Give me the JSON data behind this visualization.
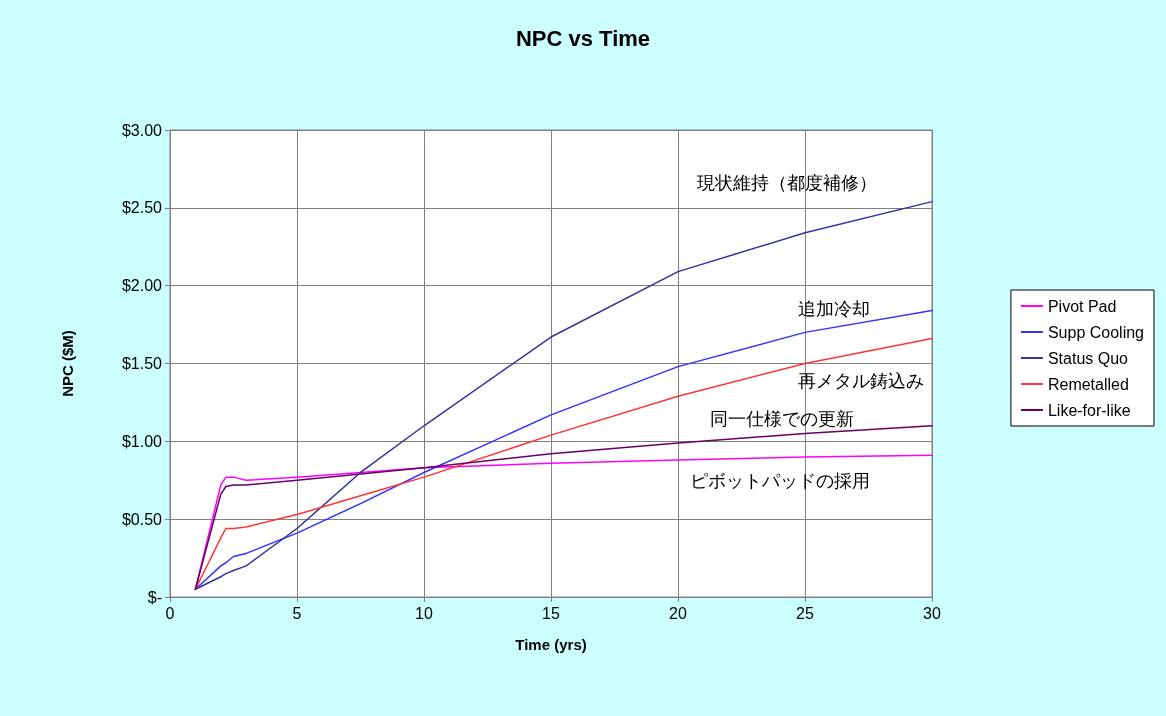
{
  "chart_data": {
    "type": "line",
    "title": "NPC vs Time",
    "xlabel": "Time (yrs)",
    "ylabel": "NPC ($M)",
    "xlim": [
      0,
      30
    ],
    "xticks": [
      0,
      5,
      10,
      15,
      20,
      25,
      30
    ],
    "ylim": [
      0,
      3
    ],
    "yticks": [
      {
        "value": 0,
        "label": "$-"
      },
      {
        "value": 0.5,
        "label": "$0.50"
      },
      {
        "value": 1,
        "label": "$1.00"
      },
      {
        "value": 1.5,
        "label": "$1.50"
      },
      {
        "value": 2,
        "label": "$2.00"
      },
      {
        "value": 2.5,
        "label": "$2.50"
      },
      {
        "value": 3,
        "label": "$3.00"
      }
    ],
    "grid": true,
    "legend": "right",
    "marker": "none",
    "line_style": "solid",
    "x": [
      1,
      2,
      2.2,
      2.5,
      3,
      5,
      7.5,
      10,
      15,
      20,
      25,
      30
    ],
    "series": [
      {
        "name": "Pivot Pad",
        "color": "#ff00ff",
        "values": [
          0.05,
          0.72,
          0.77,
          0.77,
          0.75,
          0.77,
          0.8,
          0.83,
          0.86,
          0.88,
          0.9,
          0.91
        ]
      },
      {
        "name": "Supp Cooling",
        "color": "#3333ff",
        "values": [
          0.05,
          0.2,
          0.22,
          0.26,
          0.28,
          0.41,
          0.6,
          0.8,
          1.17,
          1.48,
          1.7,
          1.84
        ]
      },
      {
        "name": "Status Quo",
        "color": "#333399",
        "values": [
          0.05,
          0.13,
          0.15,
          0.17,
          0.2,
          0.44,
          0.8,
          1.1,
          1.67,
          2.09,
          2.34,
          2.54
        ]
      },
      {
        "name": "Remetalled",
        "color": "#ff3333",
        "values": [
          0.05,
          0.38,
          0.44,
          0.44,
          0.45,
          0.53,
          0.65,
          0.77,
          1.04,
          1.29,
          1.5,
          1.66
        ]
      },
      {
        "name": "Like-for-like",
        "color": "#660066",
        "values": [
          0.05,
          0.66,
          0.71,
          0.72,
          0.72,
          0.75,
          0.79,
          0.83,
          0.92,
          0.99,
          1.05,
          1.1
        ]
      }
    ],
    "annotations": [
      "現状維持（都度補修）",
      "追加冷却",
      "再メタル鋳込み",
      "同一仕様での更新",
      "ピボットパッドの採用"
    ]
  }
}
